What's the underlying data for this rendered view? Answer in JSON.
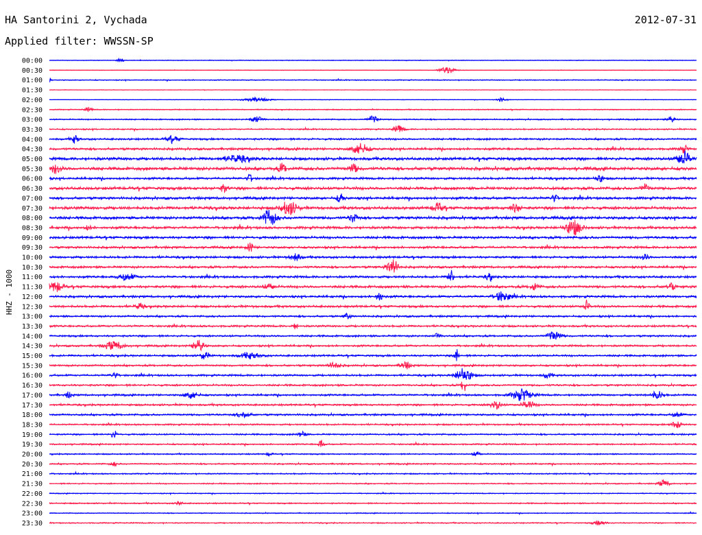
{
  "header": {
    "station": "HA Santorini 2, Vychada",
    "date": "2012-07-31",
    "filter": "Applied filter: WWSSN-SP"
  },
  "chart_data": {
    "type": "line",
    "title": "HA Santorini 2, Vychada",
    "ylabel": "HHZ - 1000",
    "xlabel": "",
    "grid": false,
    "legend": "none",
    "row_labels": [
      "00:00",
      "00:30",
      "01:00",
      "01:30",
      "02:00",
      "02:30",
      "03:00",
      "03:30",
      "04:00",
      "04:30",
      "05:00",
      "05:30",
      "06:00",
      "06:30",
      "07:00",
      "07:30",
      "08:00",
      "08:30",
      "09:00",
      "09:30",
      "10:00",
      "10:30",
      "11:00",
      "11:30",
      "12:00",
      "12:30",
      "13:00",
      "13:30",
      "14:00",
      "14:30",
      "15:00",
      "15:30",
      "16:00",
      "16:30",
      "17:00",
      "17:30",
      "18:00",
      "18:30",
      "19:00",
      "19:30",
      "20:00",
      "20:30",
      "21:00",
      "21:30",
      "22:00",
      "22:30",
      "23:00",
      "23:30"
    ],
    "noise": [
      0.4,
      0.3,
      0.6,
      0.3,
      0.3,
      0.6,
      0.8,
      0.8,
      1.2,
      1.4,
      1.8,
      2.0,
      1.4,
      1.8,
      1.6,
      1.8,
      1.8,
      1.6,
      1.6,
      1.4,
      1.4,
      1.4,
      1.4,
      1.6,
      1.4,
      1.4,
      1.2,
      1.2,
      1.2,
      1.2,
      1.2,
      1.2,
      1.2,
      1.2,
      1.2,
      1.2,
      1.2,
      1.0,
      1.0,
      0.9,
      0.8,
      0.9,
      0.8,
      0.8,
      0.6,
      0.8,
      0.6,
      0.7
    ],
    "events": [
      {
        "row": 0,
        "t": 0.11,
        "a": 3,
        "w": 0.005
      },
      {
        "row": 1,
        "t": 0.615,
        "a": 5,
        "w": 0.012
      },
      {
        "row": 2,
        "t": 0.0,
        "a": 3,
        "w": 0.004
      },
      {
        "row": 4,
        "t": 0.32,
        "a": 3,
        "w": 0.02
      },
      {
        "row": 4,
        "t": 0.7,
        "a": 3,
        "w": 0.008
      },
      {
        "row": 5,
        "t": 0.06,
        "a": 3,
        "w": 0.006
      },
      {
        "row": 6,
        "t": 0.32,
        "a": 4,
        "w": 0.01
      },
      {
        "row": 6,
        "t": 0.5,
        "a": 5,
        "w": 0.008
      },
      {
        "row": 6,
        "t": 0.96,
        "a": 4,
        "w": 0.006
      },
      {
        "row": 7,
        "t": 0.54,
        "a": 5,
        "w": 0.008
      },
      {
        "row": 8,
        "t": 0.04,
        "a": 6,
        "w": 0.005
      },
      {
        "row": 8,
        "t": 0.19,
        "a": 4,
        "w": 0.01
      },
      {
        "row": 9,
        "t": 0.48,
        "a": 8,
        "w": 0.012
      },
      {
        "row": 9,
        "t": 0.98,
        "a": 5,
        "w": 0.006
      },
      {
        "row": 10,
        "t": 0.29,
        "a": 4,
        "w": 0.02
      },
      {
        "row": 10,
        "t": 0.98,
        "a": 10,
        "w": 0.01
      },
      {
        "row": 11,
        "t": 0.01,
        "a": 6,
        "w": 0.008
      },
      {
        "row": 11,
        "t": 0.36,
        "a": 7,
        "w": 0.006
      },
      {
        "row": 11,
        "t": 0.47,
        "a": 6,
        "w": 0.006
      },
      {
        "row": 12,
        "t": 0.31,
        "a": 5,
        "w": 0.005
      },
      {
        "row": 12,
        "t": 0.85,
        "a": 5,
        "w": 0.006
      },
      {
        "row": 13,
        "t": 0.27,
        "a": 5,
        "w": 0.005
      },
      {
        "row": 13,
        "t": 0.92,
        "a": 5,
        "w": 0.006
      },
      {
        "row": 14,
        "t": 0.45,
        "a": 6,
        "w": 0.005
      },
      {
        "row": 14,
        "t": 0.78,
        "a": 5,
        "w": 0.005
      },
      {
        "row": 15,
        "t": 0.37,
        "a": 10,
        "w": 0.012
      },
      {
        "row": 15,
        "t": 0.6,
        "a": 6,
        "w": 0.008
      },
      {
        "row": 15,
        "t": 0.72,
        "a": 5,
        "w": 0.008
      },
      {
        "row": 16,
        "t": 0.34,
        "a": 12,
        "w": 0.01
      },
      {
        "row": 16,
        "t": 0.47,
        "a": 6,
        "w": 0.006
      },
      {
        "row": 17,
        "t": 0.81,
        "a": 10,
        "w": 0.012
      },
      {
        "row": 17,
        "t": 0.06,
        "a": 3,
        "w": 0.005
      },
      {
        "row": 19,
        "t": 0.31,
        "a": 6,
        "w": 0.005
      },
      {
        "row": 20,
        "t": 0.38,
        "a": 5,
        "w": 0.008
      },
      {
        "row": 20,
        "t": 0.92,
        "a": 4,
        "w": 0.006
      },
      {
        "row": 21,
        "t": 0.53,
        "a": 12,
        "w": 0.008
      },
      {
        "row": 22,
        "t": 0.12,
        "a": 5,
        "w": 0.012
      },
      {
        "row": 22,
        "t": 0.62,
        "a": 10,
        "w": 0.004
      },
      {
        "row": 22,
        "t": 0.68,
        "a": 5,
        "w": 0.005
      },
      {
        "row": 23,
        "t": 0.01,
        "a": 7,
        "w": 0.01
      },
      {
        "row": 23,
        "t": 0.34,
        "a": 4,
        "w": 0.008
      },
      {
        "row": 23,
        "t": 0.75,
        "a": 5,
        "w": 0.006
      },
      {
        "row": 23,
        "t": 0.96,
        "a": 5,
        "w": 0.006
      },
      {
        "row": 24,
        "t": 0.51,
        "a": 5,
        "w": 0.006
      },
      {
        "row": 24,
        "t": 0.7,
        "a": 7,
        "w": 0.012
      },
      {
        "row": 25,
        "t": 0.14,
        "a": 4,
        "w": 0.006
      },
      {
        "row": 25,
        "t": 0.83,
        "a": 8,
        "w": 0.004
      },
      {
        "row": 26,
        "t": 0.46,
        "a": 4,
        "w": 0.005
      },
      {
        "row": 27,
        "t": 0.38,
        "a": 4,
        "w": 0.004
      },
      {
        "row": 28,
        "t": 0.78,
        "a": 7,
        "w": 0.01
      },
      {
        "row": 28,
        "t": 0.6,
        "a": 4,
        "w": 0.004
      },
      {
        "row": 29,
        "t": 0.1,
        "a": 6,
        "w": 0.014
      },
      {
        "row": 29,
        "t": 0.23,
        "a": 8,
        "w": 0.008
      },
      {
        "row": 30,
        "t": 0.24,
        "a": 6,
        "w": 0.006
      },
      {
        "row": 30,
        "t": 0.31,
        "a": 4,
        "w": 0.015
      },
      {
        "row": 30,
        "t": 0.63,
        "a": 10,
        "w": 0.003
      },
      {
        "row": 31,
        "t": 0.55,
        "a": 5,
        "w": 0.008
      },
      {
        "row": 31,
        "t": 0.44,
        "a": 4,
        "w": 0.01
      },
      {
        "row": 32,
        "t": 0.64,
        "a": 10,
        "w": 0.012
      },
      {
        "row": 32,
        "t": 0.1,
        "a": 4,
        "w": 0.005
      },
      {
        "row": 32,
        "t": 0.77,
        "a": 4,
        "w": 0.006
      },
      {
        "row": 33,
        "t": 0.64,
        "a": 14,
        "w": 0.003
      },
      {
        "row": 34,
        "t": 0.73,
        "a": 8,
        "w": 0.015
      },
      {
        "row": 34,
        "t": 0.22,
        "a": 5,
        "w": 0.01
      },
      {
        "row": 34,
        "t": 0.03,
        "a": 4,
        "w": 0.005
      },
      {
        "row": 34,
        "t": 0.94,
        "a": 5,
        "w": 0.01
      },
      {
        "row": 35,
        "t": 0.69,
        "a": 6,
        "w": 0.008
      },
      {
        "row": 35,
        "t": 0.74,
        "a": 5,
        "w": 0.01
      },
      {
        "row": 36,
        "t": 0.3,
        "a": 4,
        "w": 0.01
      },
      {
        "row": 36,
        "t": 0.97,
        "a": 4,
        "w": 0.006
      },
      {
        "row": 37,
        "t": 0.97,
        "a": 5,
        "w": 0.008
      },
      {
        "row": 38,
        "t": 0.1,
        "a": 5,
        "w": 0.005
      },
      {
        "row": 38,
        "t": 0.39,
        "a": 4,
        "w": 0.006
      },
      {
        "row": 39,
        "t": 0.42,
        "a": 6,
        "w": 0.004
      },
      {
        "row": 40,
        "t": 0.66,
        "a": 4,
        "w": 0.005
      },
      {
        "row": 40,
        "t": 0.34,
        "a": 3,
        "w": 0.004
      },
      {
        "row": 41,
        "t": 0.1,
        "a": 3,
        "w": 0.005
      },
      {
        "row": 43,
        "t": 0.95,
        "a": 5,
        "w": 0.008
      },
      {
        "row": 45,
        "t": 0.2,
        "a": 3,
        "w": 0.005
      },
      {
        "row": 47,
        "t": 0.85,
        "a": 3,
        "w": 0.01
      }
    ],
    "colors": {
      "odd_rows": "#0000ff",
      "even_rows": "#ff1a4b"
    }
  }
}
